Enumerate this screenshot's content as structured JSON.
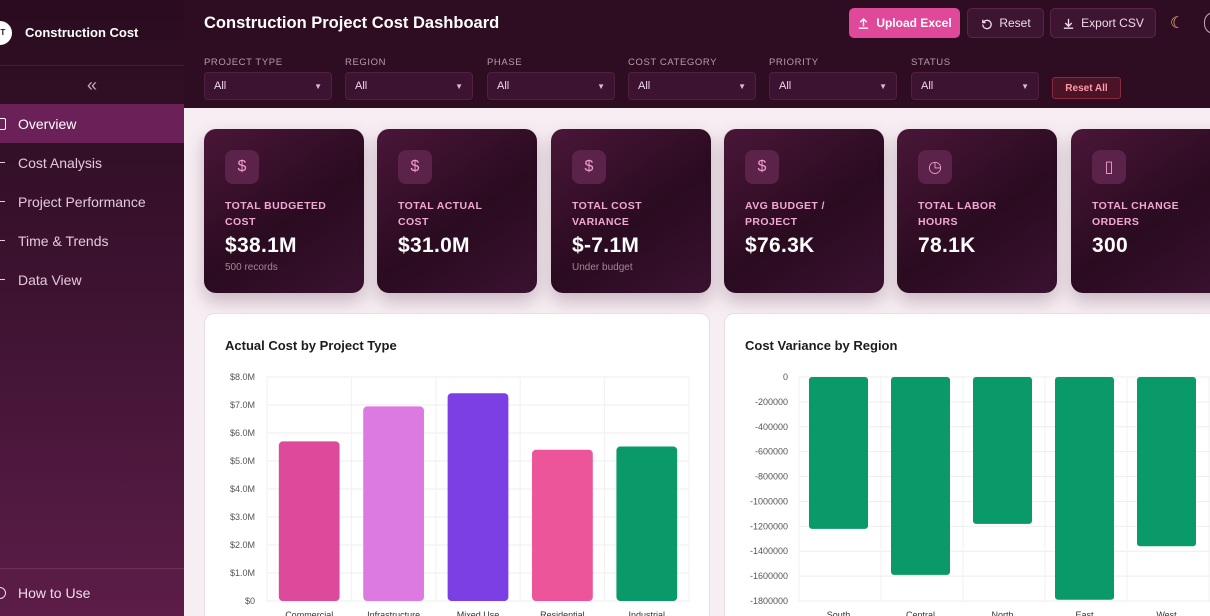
{
  "app": {
    "name": "Construction Cost",
    "logo_text": "BT"
  },
  "nav": {
    "collapse_icon": "«",
    "items": [
      {
        "label": "Overview",
        "active": true
      },
      {
        "label": "Cost Analysis",
        "active": false
      },
      {
        "label": "Project Performance",
        "active": false
      },
      {
        "label": "Time & Trends",
        "active": false
      },
      {
        "label": "Data View",
        "active": false
      }
    ],
    "footer": "How to Use"
  },
  "header": {
    "title": "Construction Project Cost Dashboard",
    "upload_label": "Upload Excel",
    "reset_label": "Reset",
    "export_label": "Export CSV",
    "theme_icon": "moon-icon"
  },
  "filters": [
    {
      "label": "Project Type",
      "value": "All"
    },
    {
      "label": "Region",
      "value": "All"
    },
    {
      "label": "Phase",
      "value": "All"
    },
    {
      "label": "Cost Category",
      "value": "All"
    },
    {
      "label": "Priority",
      "value": "All"
    },
    {
      "label": "Status",
      "value": "All"
    }
  ],
  "reset_all_label": "Reset All",
  "kpis": [
    {
      "icon": "$",
      "label": "Total Budgeted Cost",
      "value": "$38.1M",
      "sub": "500 records"
    },
    {
      "icon": "$",
      "label": "Total Actual Cost",
      "value": "$31.0M",
      "sub": ""
    },
    {
      "icon": "$",
      "label": "Total Cost Variance",
      "value": "$-7.1M",
      "sub": "Under budget"
    },
    {
      "icon": "$",
      "label": "Avg Budget / Project",
      "value": "$76.3K",
      "sub": ""
    },
    {
      "icon": "◷",
      "label": "Total Labor Hours",
      "value": "78.1K",
      "sub": ""
    },
    {
      "icon": "▯",
      "label": "Total Change Orders",
      "value": "300",
      "sub": ""
    }
  ],
  "colors": {
    "accent": "#e0489a",
    "sidebar": "#3c1230",
    "variance_bar": "#0a9968"
  },
  "chart_data": [
    {
      "type": "bar",
      "title": "Actual Cost by Project Type",
      "categories": [
        "Commercial",
        "Infrastructure",
        "Mixed Use",
        "Residential",
        "Industrial"
      ],
      "values": [
        5.7,
        6.95,
        7.42,
        5.4,
        5.52
      ],
      "colors": [
        "#dd4a9b",
        "#dd7ae2",
        "#7b3fe4",
        "#ec5599",
        "#0a9968"
      ],
      "ylabel": "",
      "ylim": [
        0,
        8
      ],
      "yticks": [
        "$0",
        "$1.0M",
        "$2.0M",
        "$3.0M",
        "$4.0M",
        "$5.0M",
        "$6.0M",
        "$7.0M",
        "$8.0M"
      ],
      "grid": true
    },
    {
      "type": "bar",
      "title": "Cost Variance by Region",
      "categories": [
        "South",
        "Central",
        "North",
        "East",
        "West"
      ],
      "values": [
        -1220000,
        -1590000,
        -1180000,
        -1790000,
        -1360000
      ],
      "colors": [
        "#0a9968",
        "#0a9968",
        "#0a9968",
        "#0a9968",
        "#0a9968"
      ],
      "ylim": [
        -1800000,
        0
      ],
      "yticks": [
        "0",
        "-200000",
        "-400000",
        "-600000",
        "-800000",
        "-1000000",
        "-1200000",
        "-1400000",
        "-1600000",
        "-1800000"
      ],
      "grid": true
    }
  ]
}
